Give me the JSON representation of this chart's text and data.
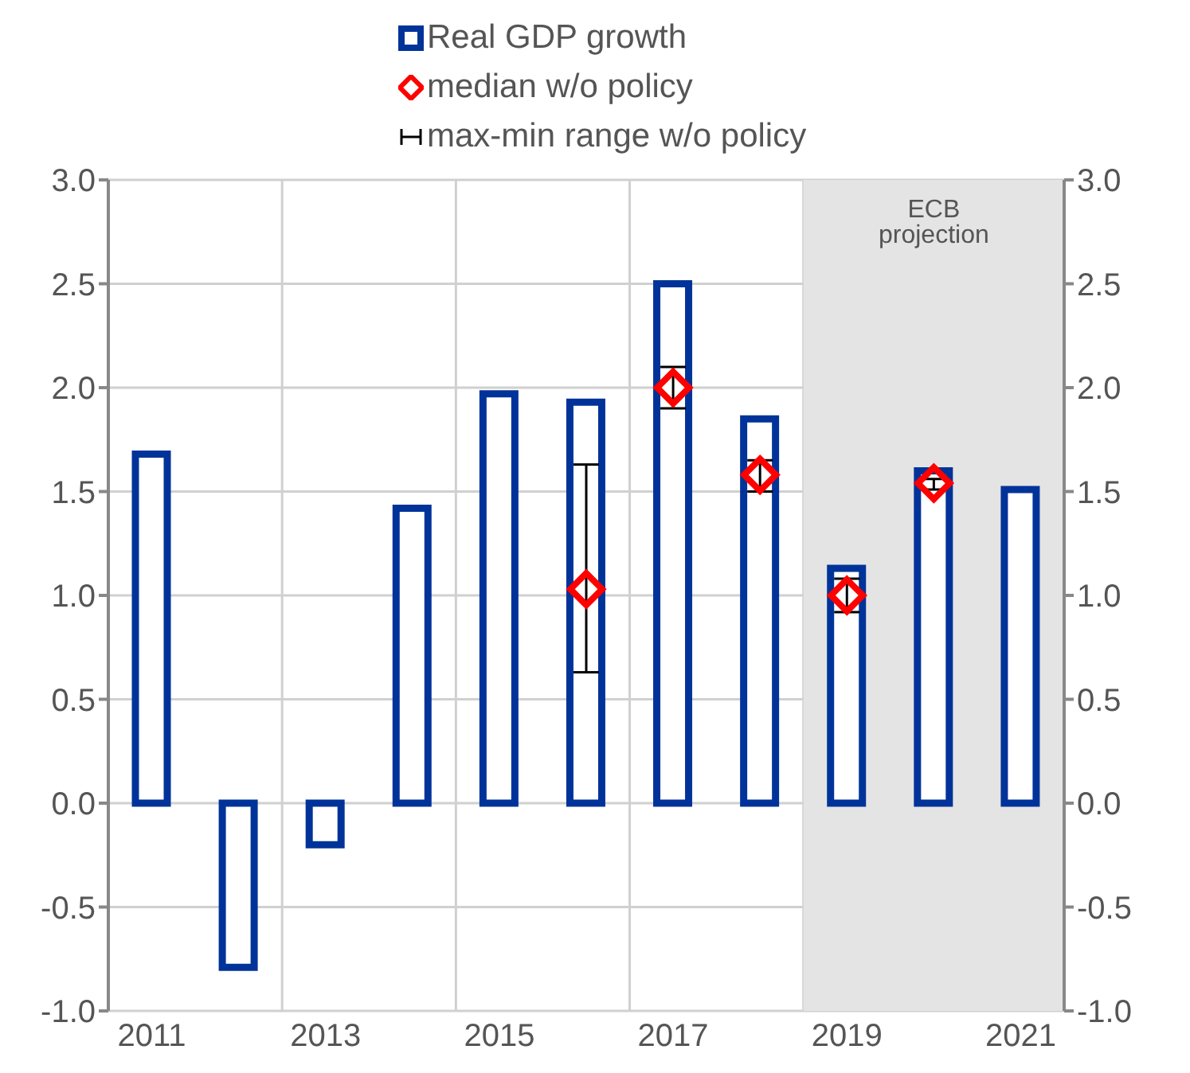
{
  "chart_data": {
    "type": "bar",
    "categories": [
      "2011",
      null,
      "2013",
      null,
      "2015",
      null,
      "2017",
      null,
      "2019",
      null,
      "2021"
    ],
    "series": [
      {
        "name": "Real GDP growth",
        "color": "#003399",
        "values": [
          1.68,
          -0.79,
          -0.2,
          1.42,
          1.97,
          1.93,
          2.5,
          1.85,
          1.13,
          1.6,
          1.51
        ]
      },
      {
        "name": "median w/o policy",
        "type": "scatter",
        "marker": "diamond",
        "color": "#ff0000",
        "values": [
          null,
          null,
          null,
          null,
          null,
          1.03,
          2.0,
          1.58,
          1.0,
          1.54,
          null
        ],
        "errors": [
          null,
          null,
          null,
          null,
          null,
          [
            0.63,
            1.63
          ],
          [
            1.9,
            2.1
          ],
          [
            1.5,
            1.65
          ],
          [
            0.92,
            1.08
          ],
          [
            1.51,
            1.56
          ],
          null
        ]
      }
    ],
    "annotations": [
      "max-min range w/o policy"
    ],
    "bands": [
      {
        "axis": "x",
        "from": "2019",
        "to": "2021",
        "label": "ECB projection",
        "color": "#e4e4e4"
      }
    ],
    "ylim": [
      -1,
      3
    ],
    "yticks": [
      {
        "value": -1,
        "label": "-1.0"
      },
      {
        "value": -0.5,
        "label": "-0.5"
      },
      {
        "value": 0,
        "label": "0.0"
      },
      {
        "value": 0.5,
        "label": "0.5"
      },
      {
        "value": 1,
        "label": "1.0"
      },
      {
        "value": 1.5,
        "label": "1.5"
      },
      {
        "value": 2,
        "label": "2.0"
      },
      {
        "value": 2.5,
        "label": "2.5"
      },
      {
        "value": 3,
        "label": "3.0"
      }
    ],
    "y2lim": [
      -1,
      3
    ],
    "y2ticks": [
      {
        "value": -1,
        "label": "-1.0"
      },
      {
        "value": -0.5,
        "label": "-0.5"
      },
      {
        "value": 0,
        "label": "0.0"
      },
      {
        "value": 0.5,
        "label": "0.5"
      },
      {
        "value": 1,
        "label": "1.0"
      },
      {
        "value": 1.5,
        "label": "1.5"
      },
      {
        "value": 2,
        "label": "2.0"
      },
      {
        "value": 2.5,
        "label": "2.5"
      },
      {
        "value": 3,
        "label": "3.0"
      }
    ],
    "grid": true,
    "legend": "top"
  }
}
